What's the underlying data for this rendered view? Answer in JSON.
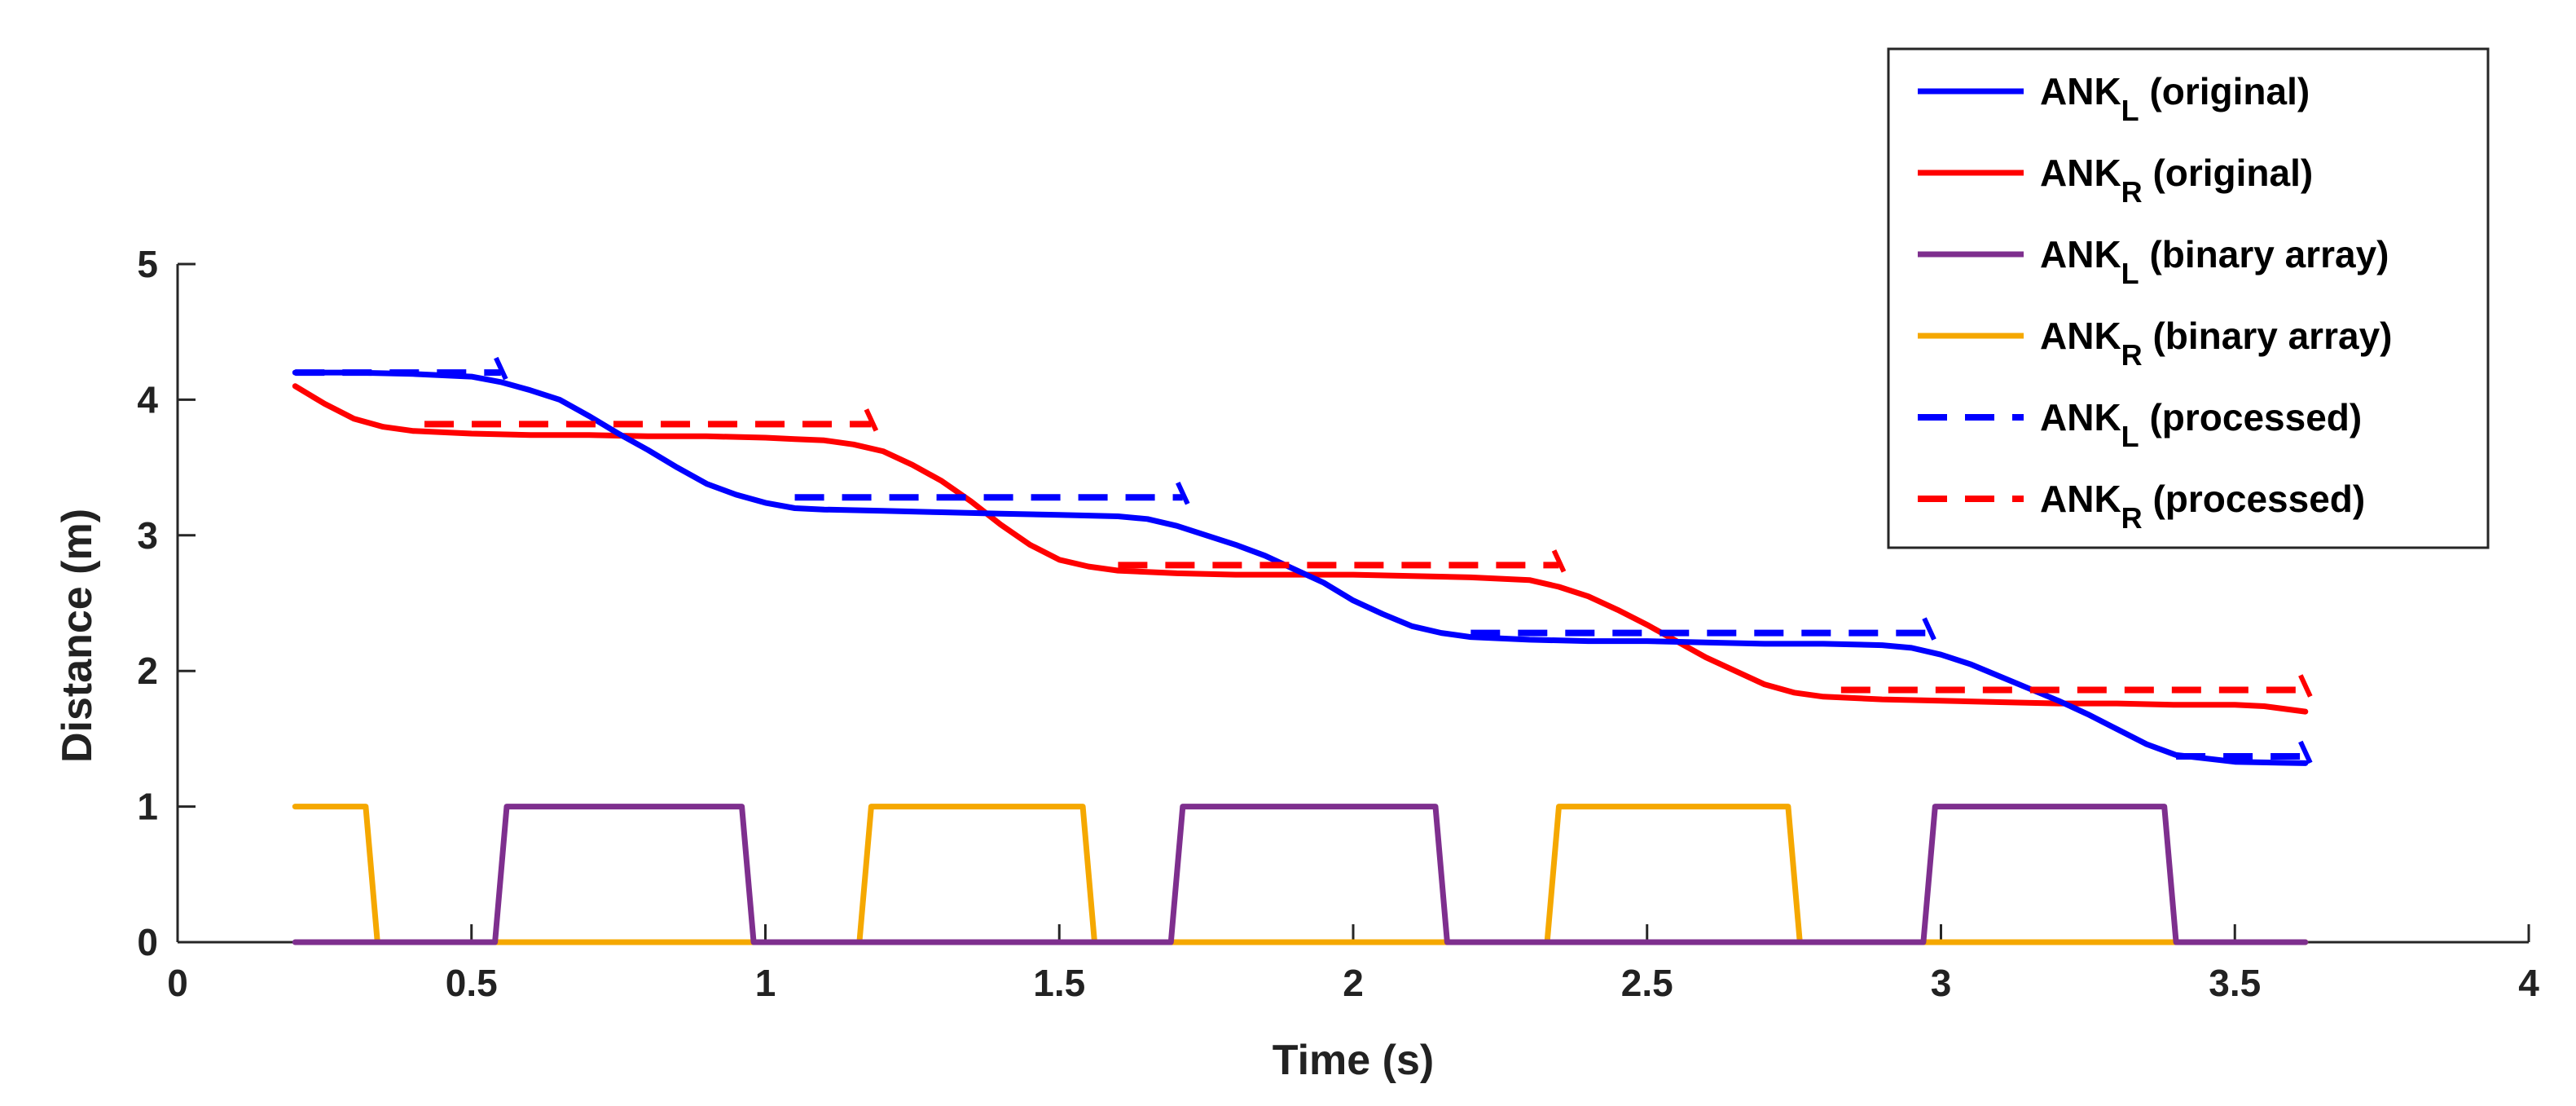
{
  "chart_data": {
    "type": "line",
    "title": "",
    "xlabel": "Time (s)",
    "ylabel": "Distance (m)",
    "xlim": [
      0,
      4
    ],
    "ylim": [
      0,
      5
    ],
    "xticks": [
      0,
      0.5,
      1,
      1.5,
      2,
      2.5,
      3,
      3.5,
      4
    ],
    "xtick_labels": [
      "0",
      "0.5",
      "1",
      "1.5",
      "2",
      "2.5",
      "3",
      "3.5",
      "4"
    ],
    "yticks": [
      0,
      1,
      2,
      3,
      4,
      5
    ],
    "ytick_labels": [
      "0",
      "1",
      "2",
      "3",
      "4",
      "5"
    ],
    "grid": false,
    "legend_position": "top-right",
    "series": [
      {
        "name": "ANK_L (original)",
        "label_main": "ANK",
        "label_sub": "L",
        "label_rest": " (original)",
        "color": "#0000ff",
        "style": "solid",
        "x": [
          0.2,
          0.3,
          0.4,
          0.5,
          0.55,
          0.6,
          0.65,
          0.7,
          0.75,
          0.8,
          0.85,
          0.9,
          0.95,
          1.0,
          1.05,
          1.1,
          1.2,
          1.3,
          1.4,
          1.5,
          1.6,
          1.65,
          1.7,
          1.75,
          1.8,
          1.85,
          1.9,
          1.95,
          2.0,
          2.05,
          2.1,
          2.15,
          2.2,
          2.3,
          2.4,
          2.5,
          2.6,
          2.7,
          2.8,
          2.9,
          2.95,
          3.0,
          3.05,
          3.1,
          3.15,
          3.2,
          3.25,
          3.3,
          3.35,
          3.4,
          3.5,
          3.62
        ],
        "y": [
          4.2,
          4.2,
          4.19,
          4.17,
          4.13,
          4.07,
          4.0,
          3.88,
          3.75,
          3.63,
          3.5,
          3.38,
          3.3,
          3.24,
          3.2,
          3.19,
          3.18,
          3.17,
          3.16,
          3.15,
          3.14,
          3.12,
          3.07,
          3.0,
          2.93,
          2.85,
          2.75,
          2.65,
          2.52,
          2.42,
          2.33,
          2.28,
          2.25,
          2.23,
          2.22,
          2.22,
          2.21,
          2.2,
          2.2,
          2.19,
          2.17,
          2.12,
          2.05,
          1.96,
          1.87,
          1.78,
          1.68,
          1.57,
          1.46,
          1.38,
          1.33,
          1.32
        ]
      },
      {
        "name": "ANK_R (original)",
        "label_main": "ANK",
        "label_sub": "R",
        "label_rest": " (original)",
        "color": "#ff0000",
        "style": "solid",
        "x": [
          0.2,
          0.25,
          0.3,
          0.35,
          0.4,
          0.5,
          0.6,
          0.7,
          0.8,
          0.9,
          1.0,
          1.05,
          1.1,
          1.15,
          1.2,
          1.25,
          1.3,
          1.35,
          1.4,
          1.45,
          1.5,
          1.55,
          1.6,
          1.7,
          1.8,
          1.9,
          2.0,
          2.1,
          2.2,
          2.3,
          2.35,
          2.4,
          2.45,
          2.5,
          2.55,
          2.6,
          2.65,
          2.7,
          2.75,
          2.8,
          2.9,
          3.0,
          3.1,
          3.2,
          3.3,
          3.4,
          3.5,
          3.55,
          3.62
        ],
        "y": [
          4.1,
          3.97,
          3.86,
          3.8,
          3.77,
          3.75,
          3.74,
          3.74,
          3.73,
          3.73,
          3.72,
          3.71,
          3.7,
          3.67,
          3.62,
          3.52,
          3.4,
          3.25,
          3.08,
          2.93,
          2.82,
          2.77,
          2.74,
          2.72,
          2.71,
          2.71,
          2.71,
          2.7,
          2.69,
          2.67,
          2.62,
          2.55,
          2.45,
          2.34,
          2.22,
          2.1,
          2.0,
          1.9,
          1.84,
          1.81,
          1.79,
          1.78,
          1.77,
          1.76,
          1.76,
          1.75,
          1.75,
          1.74,
          1.7
        ]
      },
      {
        "name": "ANK_L (binary array)",
        "label_main": "ANK",
        "label_sub": "L",
        "label_rest": " (binary array)",
        "color": "#7e2f8e",
        "style": "solid",
        "x": [
          0.2,
          0.54,
          0.56,
          0.96,
          0.98,
          1.69,
          1.71,
          2.14,
          2.16,
          2.97,
          2.99,
          3.38,
          3.4,
          3.62
        ],
        "y": [
          0,
          0,
          1,
          1,
          0,
          0,
          1,
          1,
          0,
          0,
          1,
          1,
          0,
          0
        ]
      },
      {
        "name": "ANK_R (binary array)",
        "label_main": "ANK",
        "label_sub": "R",
        "label_rest": " (binary array)",
        "color": "#f5a800",
        "style": "solid",
        "x": [
          0.2,
          0.32,
          0.34,
          1.16,
          1.18,
          1.54,
          1.56,
          2.33,
          2.35,
          2.74,
          2.76,
          3.62
        ],
        "y": [
          1,
          1,
          0,
          0,
          1,
          1,
          0,
          0,
          1,
          1,
          0,
          0
        ]
      },
      {
        "name": "ANK_L (processed)",
        "label_main": "ANK",
        "label_sub": "L",
        "label_rest": " (processed)",
        "color": "#0000ff",
        "style": "dashed",
        "segments": [
          {
            "x0": 0.2,
            "x1": 0.55,
            "y": 4.2
          },
          {
            "x0": 1.05,
            "x1": 1.71,
            "y": 3.28
          },
          {
            "x0": 2.2,
            "x1": 2.98,
            "y": 2.28
          },
          {
            "x0": 3.4,
            "x1": 3.62,
            "y": 1.37
          }
        ]
      },
      {
        "name": "ANK_R (processed)",
        "label_main": "ANK",
        "label_sub": "R",
        "label_rest": " (processed)",
        "color": "#ff0000",
        "style": "dashed",
        "segments": [
          {
            "x0": 0.42,
            "x1": 1.18,
            "y": 3.82
          },
          {
            "x0": 1.6,
            "x1": 2.35,
            "y": 2.78
          },
          {
            "x0": 2.83,
            "x1": 3.62,
            "y": 1.86
          }
        ]
      }
    ]
  }
}
